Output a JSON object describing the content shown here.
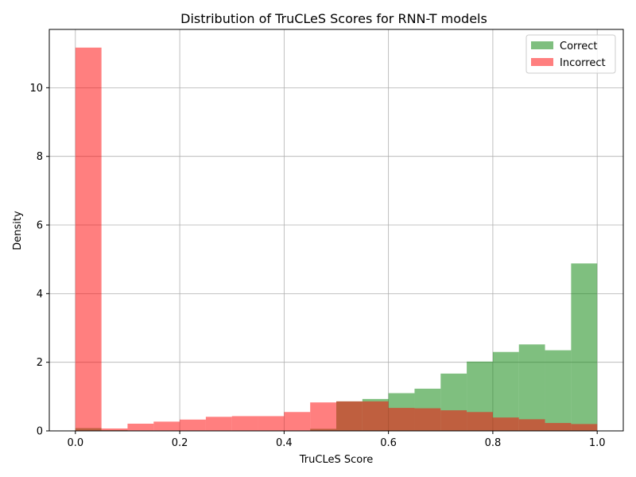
{
  "chart_data": {
    "type": "bar",
    "title": "Distribution of TruCLeS Scores for RNN-T models",
    "xlabel": "TruCLeS Score",
    "ylabel": "Density",
    "xlim": [
      -0.05,
      1.05
    ],
    "ylim": [
      0,
      11.7
    ],
    "grid": true,
    "legend_position": "top-right",
    "bin_edges": [
      0.0,
      0.05,
      0.1,
      0.15,
      0.2,
      0.25,
      0.3,
      0.35,
      0.4,
      0.45,
      0.5,
      0.55,
      0.6,
      0.65,
      0.7,
      0.75,
      0.8,
      0.85,
      0.9,
      0.95,
      1.0
    ],
    "x_ticks": [
      {
        "value": 0.0,
        "label": "0.0"
      },
      {
        "value": 0.2,
        "label": "0.2"
      },
      {
        "value": 0.4,
        "label": "0.4"
      },
      {
        "value": 0.6,
        "label": "0.6"
      },
      {
        "value": 0.8,
        "label": "0.8"
      },
      {
        "value": 1.0,
        "label": "1.0"
      }
    ],
    "y_ticks": [
      {
        "value": 0,
        "label": "0"
      },
      {
        "value": 2,
        "label": "2"
      },
      {
        "value": 4,
        "label": "4"
      },
      {
        "value": 6,
        "label": "6"
      },
      {
        "value": 8,
        "label": "8"
      },
      {
        "value": 10,
        "label": "10"
      }
    ],
    "series": [
      {
        "name": "Correct",
        "color": "#008000",
        "alpha": 0.5,
        "values": [
          0.08,
          0.02,
          0.0,
          0.0,
          0.0,
          0.0,
          0.01,
          0.01,
          0.01,
          0.06,
          0.86,
          0.93,
          1.1,
          1.23,
          1.67,
          2.02,
          2.3,
          2.52,
          2.35,
          4.88
        ]
      },
      {
        "name": "Incorrect",
        "color": "#ff0000",
        "alpha": 0.5,
        "values": [
          11.17,
          0.07,
          0.21,
          0.27,
          0.33,
          0.41,
          0.43,
          0.43,
          0.55,
          0.83,
          0.86,
          0.86,
          0.67,
          0.66,
          0.6,
          0.55,
          0.39,
          0.34,
          0.23,
          0.2
        ]
      }
    ]
  }
}
